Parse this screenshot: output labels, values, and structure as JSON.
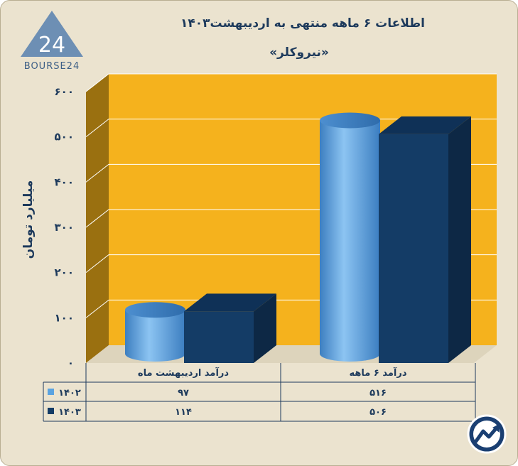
{
  "chart_data": {
    "type": "bar",
    "title": "اطلاعات ۶ ماهه منتهی به اردیبهشت۱۴۰۳",
    "subtitle": "«نیروکلر»",
    "ylabel": "میلیارد تومان",
    "ylim": [
      0,
      600
    ],
    "yticks": [
      0,
      100,
      200,
      300,
      400,
      500,
      600
    ],
    "ytick_labels": [
      "۰",
      "۱۰۰",
      "۲۰۰",
      "۳۰۰",
      "۴۰۰",
      "۵۰۰",
      "۶۰۰"
    ],
    "categories": [
      "درآمد اردیبهشت ماه",
      "درآمد ۶ ماهه"
    ],
    "series": [
      {
        "name": "۱۴۰۲",
        "values": [
          97,
          516
        ],
        "value_labels": [
          "۹۷",
          "۵۱۶"
        ],
        "color": "#5ba3e0"
      },
      {
        "name": "۱۴۰۳",
        "values": [
          114,
          506
        ],
        "value_labels": [
          "۱۱۴",
          "۵۰۶"
        ],
        "color": "#143c66"
      }
    ],
    "grid": true,
    "legend": "table-left"
  },
  "logo": {
    "text": "BOURSE24",
    "mark": "24"
  },
  "colors": {
    "background": "#ebe3cf",
    "plot_back": "#f5b21d",
    "plot_side": "#9a7010",
    "text": "#1d3a5c"
  },
  "icons": {
    "watermark": "stock-trend-icon"
  }
}
